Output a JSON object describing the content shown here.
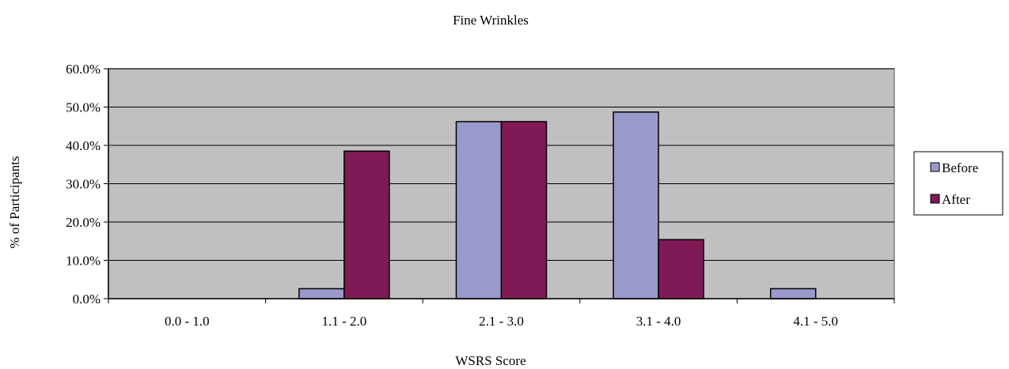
{
  "chart_data": {
    "type": "bar",
    "title": "Fine Wrinkles",
    "xlabel": "WSRS Score",
    "ylabel": "% of Participants",
    "categories": [
      "0.0 - 1.0",
      "1.1 - 2.0",
      "2.1 - 3.0",
      "3.1 - 4.0",
      "4.1 - 5.0"
    ],
    "y_ticks": [
      "0.0%",
      "10.0%",
      "20.0%",
      "30.0%",
      "40.0%",
      "50.0%",
      "60.0%"
    ],
    "ylim": [
      0,
      60
    ],
    "grid": true,
    "legend": "right",
    "series": [
      {
        "name": "Before",
        "color": "#9999cc",
        "values": [
          0,
          2.6,
          46.2,
          48.7,
          2.6
        ]
      },
      {
        "name": "After",
        "color": "#7f1a56",
        "values": [
          0,
          38.5,
          46.2,
          15.4,
          0
        ]
      }
    ],
    "plot_background": "#c0c0c0"
  }
}
